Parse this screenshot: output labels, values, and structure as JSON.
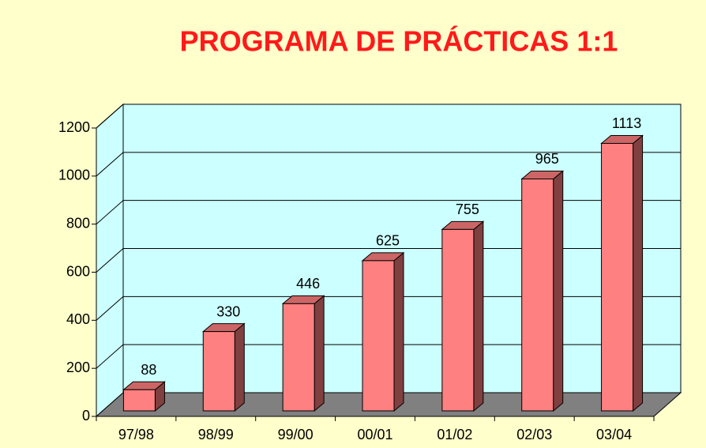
{
  "chart_data": {
    "type": "bar3d",
    "title": "PROGRAMA DE PRÁCTICAS 1:1",
    "categories": [
      "97/98",
      "98/99",
      "99/00",
      "00/01",
      "01/02",
      "02/03",
      "03/04"
    ],
    "values": [
      88,
      330,
      446,
      625,
      755,
      965,
      1113
    ],
    "color": "#ff8080",
    "wall_color": "#ccffff",
    "floor_color": "#808080",
    "ylim": [
      0,
      1200
    ],
    "yticks": [
      0,
      200,
      400,
      600,
      800,
      1000,
      1200
    ],
    "grid": true
  }
}
